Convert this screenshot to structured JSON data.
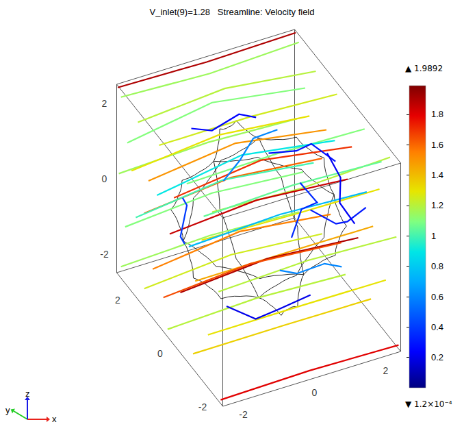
{
  "chart_data": {
    "type": "streamline3d",
    "title": "V_inlet(9)=1.28   Streamline: Velocity field",
    "xlim": [
      -2.5,
      2.5
    ],
    "ylim": [
      -2.5,
      2.5
    ],
    "zlim": [
      -2.5,
      2.5
    ],
    "xticks": [
      -2,
      0,
      2
    ],
    "yticks": [
      -2,
      0,
      2
    ],
    "zticks": [
      -2,
      0,
      2
    ],
    "triad": [
      "x",
      "y",
      "z"
    ],
    "colorbar": {
      "range": [
        0.00012,
        1.9892
      ],
      "ticks": [
        0.2,
        0.4,
        0.6,
        0.8,
        1,
        1.2,
        1.4,
        1.6,
        1.8
      ],
      "max_label": "▲ 1.9892",
      "min_label": "▼ 1.2×10⁻⁴"
    },
    "streamlines": [
      {
        "speed": 1.9,
        "points": [
          [
            -2.5,
            2.45,
            2.45
          ],
          [
            0,
            2.45,
            2.4
          ],
          [
            2.5,
            2.45,
            2.45
          ]
        ]
      },
      {
        "speed": 1.15,
        "points": [
          [
            -2.5,
            2.3,
            2.3
          ],
          [
            0,
            2.3,
            2.2
          ],
          [
            2.5,
            2.3,
            2.3
          ]
        ]
      },
      {
        "speed": 1.2,
        "points": [
          [
            -2.5,
            1.5,
            2.2
          ],
          [
            0,
            1.6,
            2.3
          ],
          [
            2.5,
            1.5,
            2.1
          ]
        ]
      },
      {
        "speed": 1.25,
        "points": [
          [
            -2.5,
            0.5,
            2.3
          ],
          [
            0,
            0.4,
            2.4
          ],
          [
            2.5,
            0.5,
            2.2
          ]
        ]
      },
      {
        "speed": 1.1,
        "points": [
          [
            -2.5,
            -0.8,
            2.2
          ],
          [
            0,
            -0.9,
            2.35
          ],
          [
            2.5,
            -0.8,
            2.2
          ]
        ]
      },
      {
        "speed": 1.2,
        "points": [
          [
            -2.5,
            -2.0,
            2.3
          ],
          [
            0,
            -2.0,
            2.2
          ],
          [
            2.5,
            -2.0,
            2.3
          ]
        ]
      },
      {
        "speed": 1.1,
        "points": [
          [
            -2.5,
            2.0,
            1.3
          ],
          [
            0,
            2.2,
            1.5
          ],
          [
            2.5,
            2.0,
            1.3
          ]
        ]
      },
      {
        "speed": 1.5,
        "points": [
          [
            -2.5,
            1.0,
            1.0
          ],
          [
            0,
            1.1,
            1.2
          ],
          [
            2.5,
            1.0,
            0.9
          ]
        ]
      },
      {
        "speed": 1.7,
        "points": [
          [
            -2.5,
            -0.2,
            1.4
          ],
          [
            0,
            -0.1,
            1.6
          ],
          [
            2.5,
            -0.2,
            1.3
          ]
        ]
      },
      {
        "speed": 1.3,
        "points": [
          [
            -2.5,
            -1.5,
            1.2
          ],
          [
            0,
            -1.7,
            1.3
          ],
          [
            2.5,
            -1.5,
            1.1
          ]
        ]
      },
      {
        "speed": 1.15,
        "points": [
          [
            -2.5,
            2.4,
            0.2
          ],
          [
            0,
            2.4,
            0.3
          ],
          [
            2.5,
            2.4,
            0.2
          ]
        ]
      },
      {
        "speed": 1.6,
        "points": [
          [
            -2.5,
            1.2,
            0.0
          ],
          [
            0,
            1.3,
            0.15
          ],
          [
            2.5,
            1.2,
            0.0
          ]
        ]
      },
      {
        "speed": 1.85,
        "points": [
          [
            -2.5,
            0.0,
            0.3
          ],
          [
            0,
            0.1,
            0.4
          ],
          [
            2.5,
            0.0,
            0.3
          ]
        ]
      },
      {
        "speed": 1.45,
        "points": [
          [
            -2.5,
            -1.2,
            -0.1
          ],
          [
            0,
            -1.3,
            0.0
          ],
          [
            2.5,
            -1.2,
            -0.1
          ]
        ]
      },
      {
        "speed": 1.2,
        "points": [
          [
            -2.5,
            -2.3,
            0.4
          ],
          [
            0,
            -2.3,
            0.5
          ],
          [
            2.5,
            -2.3,
            0.4
          ]
        ]
      },
      {
        "speed": 1.1,
        "points": [
          [
            -2.5,
            2.1,
            -1.0
          ],
          [
            0,
            2.2,
            -0.9
          ],
          [
            2.5,
            2.1,
            -1.0
          ]
        ]
      },
      {
        "speed": 1.55,
        "points": [
          [
            -2.5,
            0.8,
            -1.2
          ],
          [
            0,
            0.9,
            -1.0
          ],
          [
            2.5,
            0.8,
            -1.2
          ]
        ]
      },
      {
        "speed": 1.9,
        "points": [
          [
            -2.5,
            -0.5,
            -0.9
          ],
          [
            0,
            -0.4,
            -0.8
          ],
          [
            2.5,
            -0.5,
            -0.9
          ]
        ]
      },
      {
        "speed": 1.3,
        "points": [
          [
            -2.5,
            -1.8,
            -1.1
          ],
          [
            0,
            -1.9,
            -1.0
          ],
          [
            2.5,
            -1.8,
            -1.1
          ]
        ]
      },
      {
        "speed": 1.15,
        "points": [
          [
            -2.5,
            2.3,
            -2.2
          ],
          [
            0,
            2.3,
            -2.1
          ],
          [
            2.5,
            2.3,
            -2.2
          ]
        ]
      },
      {
        "speed": 1.25,
        "points": [
          [
            -2.5,
            1.2,
            -2.0
          ],
          [
            0,
            1.3,
            -1.9
          ],
          [
            2.5,
            1.2,
            -2.0
          ]
        ]
      },
      {
        "speed": 1.2,
        "points": [
          [
            -2.5,
            0.1,
            -2.3
          ],
          [
            0,
            0.1,
            -2.2
          ],
          [
            2.5,
            0.1,
            -2.3
          ]
        ]
      },
      {
        "speed": 1.35,
        "points": [
          [
            -2.5,
            -1.1,
            -2.1
          ],
          [
            0,
            -1.2,
            -2.0
          ],
          [
            2.5,
            -1.1,
            -2.1
          ]
        ]
      },
      {
        "speed": 1.8,
        "points": [
          [
            -2.5,
            -2.4,
            -2.4
          ],
          [
            0,
            -2.4,
            -2.35
          ],
          [
            2.5,
            -2.4,
            -2.4
          ]
        ]
      },
      {
        "speed": 0.9,
        "points": [
          [
            -2.5,
            0.6,
            0.9
          ],
          [
            0,
            0.8,
            1.1
          ],
          [
            2.5,
            0.6,
            0.9
          ]
        ]
      },
      {
        "speed": 0.75,
        "points": [
          [
            -2.5,
            -0.9,
            0.6
          ],
          [
            0,
            -1.0,
            0.8
          ],
          [
            2.5,
            -0.9,
            0.6
          ]
        ]
      },
      {
        "speed": 1.0,
        "points": [
          [
            -2.5,
            1.6,
            -0.4
          ],
          [
            0,
            1.7,
            -0.2
          ],
          [
            2.5,
            1.6,
            -0.4
          ]
        ]
      },
      {
        "speed": 1.05,
        "points": [
          [
            -2.5,
            -1.6,
            1.9
          ],
          [
            0,
            -1.6,
            2.0
          ],
          [
            2.5,
            -1.6,
            1.9
          ]
        ]
      },
      {
        "speed": 1.65,
        "points": [
          [
            -2.5,
            0.3,
            -1.6
          ],
          [
            0,
            0.4,
            -1.5
          ],
          [
            2.5,
            0.3,
            -1.6
          ]
        ]
      },
      {
        "speed": 1.3,
        "points": [
          [
            -2.5,
            1.8,
            0.7
          ],
          [
            0,
            1.9,
            0.85
          ],
          [
            2.5,
            1.8,
            0.7
          ]
        ]
      },
      {
        "speed": 0.25,
        "points": [
          [
            -1.0,
            1.5,
            1.6
          ],
          [
            -0.3,
            1.7,
            1.2
          ],
          [
            0.4,
            1.6,
            1.5
          ],
          [
            1.0,
            1.8,
            1.1
          ]
        ]
      },
      {
        "speed": 0.3,
        "points": [
          [
            0.5,
            -1.6,
            1.2
          ],
          [
            1.1,
            -1.8,
            0.8
          ],
          [
            1.6,
            -1.5,
            0.5
          ],
          [
            2.0,
            -1.7,
            0.9
          ]
        ]
      },
      {
        "speed": 0.2,
        "points": [
          [
            -1.5,
            -1.0,
            -1.2
          ],
          [
            -0.8,
            -1.2,
            -1.6
          ],
          [
            0.0,
            -0.9,
            -1.8
          ],
          [
            0.8,
            -1.1,
            -1.5
          ]
        ]
      },
      {
        "speed": 0.35,
        "points": [
          [
            1.4,
            0.8,
            -1.5
          ],
          [
            1.8,
            1.0,
            -1.0
          ],
          [
            2.0,
            0.6,
            -0.6
          ],
          [
            1.7,
            0.9,
            -0.2
          ]
        ]
      },
      {
        "speed": 0.4,
        "points": [
          [
            -1.9,
            0.4,
            0.8
          ],
          [
            -1.6,
            0.7,
            0.3
          ],
          [
            -1.9,
            0.5,
            -0.3
          ],
          [
            -1.6,
            0.8,
            -0.8
          ]
        ]
      },
      {
        "speed": 0.28,
        "points": [
          [
            1.8,
            -0.6,
            1.4
          ],
          [
            1.3,
            -0.3,
            1.8
          ],
          [
            0.7,
            -0.6,
            2.0
          ],
          [
            0.1,
            -0.3,
            1.9
          ]
        ]
      },
      {
        "speed": 0.6,
        "points": [
          [
            0.2,
            2.0,
            -0.5
          ],
          [
            0.6,
            1.9,
            0.0
          ],
          [
            1.1,
            2.1,
            0.3
          ],
          [
            1.6,
            1.8,
            0.6
          ]
        ]
      },
      {
        "speed": 0.6,
        "points": [
          [
            -0.6,
            -2.0,
            0.2
          ],
          [
            0.0,
            -1.8,
            -0.2
          ],
          [
            0.6,
            -2.1,
            0.1
          ],
          [
            1.2,
            -1.9,
            -0.3
          ]
        ]
      },
      {
        "speed": 0.22,
        "points": [
          [
            2.1,
            0.3,
            0.9
          ],
          [
            2.3,
            0.0,
            0.4
          ],
          [
            2.1,
            -0.3,
            0.0
          ],
          [
            2.4,
            -0.5,
            -0.5
          ]
        ]
      }
    ]
  }
}
